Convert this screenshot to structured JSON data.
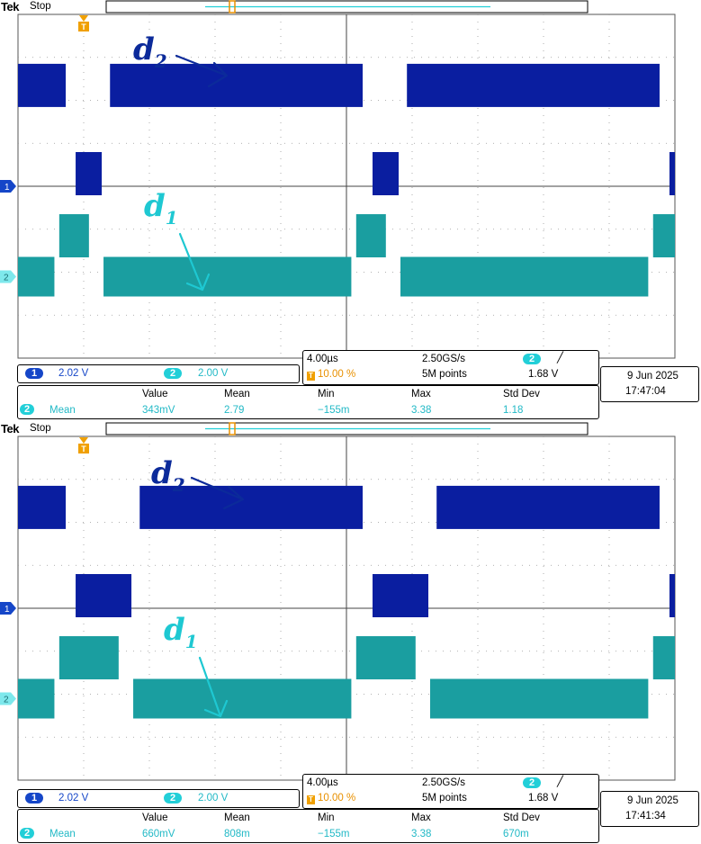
{
  "scopes": [
    {
      "brand": "Tek",
      "status": "Stop",
      "label_d2": "d",
      "label_d2_sub": "2",
      "label_d1": "d",
      "label_d1_sub": "1",
      "ch1": {
        "number": "1",
        "scale": "2.02 V"
      },
      "ch2": {
        "number": "2",
        "scale": "2.00 V"
      },
      "timebase": "4.00µs",
      "sample_rate": "2.50GS/s",
      "record_length": "5M points",
      "trigger_position": "10.00 %",
      "trigger_channel": "2",
      "trigger_slope": "╱",
      "trigger_level": "1.68 V",
      "date": "9 Jun  2025",
      "time": "17:47:04",
      "measure": {
        "headers": [
          "Value",
          "Mean",
          "Min",
          "Max",
          "Std Dev"
        ],
        "channel": "2",
        "type": "Mean",
        "values": [
          "343mV",
          "2.79",
          "−155m",
          "3.38",
          "1.18"
        ]
      },
      "colors": {
        "ch1": "#0a1ea0",
        "ch2": "#1a9ea0",
        "label_d2": "#0b2a9a",
        "label_d1": "#1ec8d2"
      },
      "duty_d2": 0.9,
      "duty_d1": 0.1
    },
    {
      "brand": "Tek",
      "status": "Stop",
      "label_d2": "d",
      "label_d2_sub": "2",
      "label_d1": "d",
      "label_d1_sub": "1",
      "ch1": {
        "number": "1",
        "scale": "2.02 V"
      },
      "ch2": {
        "number": "2",
        "scale": "2.00 V"
      },
      "timebase": "4.00µs",
      "sample_rate": "2.50GS/s",
      "record_length": "5M points",
      "trigger_position": "10.00 %",
      "trigger_channel": "2",
      "trigger_slope": "╱",
      "trigger_level": "1.68 V",
      "date": "9 Jun  2025",
      "time": "17:41:34",
      "measure": {
        "headers": [
          "Value",
          "Mean",
          "Min",
          "Max",
          "Std Dev"
        ],
        "channel": "2",
        "type": "Mean",
        "values": [
          "660mV",
          "808m",
          "−155m",
          "3.38",
          "670m"
        ]
      },
      "colors": {
        "ch1": "#0a1ea0",
        "ch2": "#1a9ea0",
        "label_d2": "#0b2a9a",
        "label_d1": "#1ec8d2"
      },
      "duty_d2": 0.8,
      "duty_d1": 0.2
    }
  ]
}
